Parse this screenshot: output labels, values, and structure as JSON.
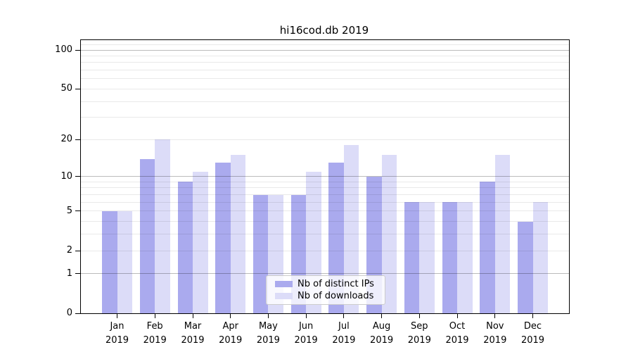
{
  "title": "hi16cod.db 2019",
  "background": "#ffffff",
  "axis_color": "#000000",
  "grid_color_major": "#bbbbbb",
  "grid_color_minor": "#e9e9e9",
  "chart_data": {
    "type": "bar",
    "title": "hi16cod.db 2019",
    "categories": [
      "Jan",
      "Feb",
      "Mar",
      "Apr",
      "May",
      "Jun",
      "Jul",
      "Aug",
      "Sep",
      "Oct",
      "Nov",
      "Dec"
    ],
    "year": "2019",
    "series": [
      {
        "name": "Nb of distinct IPs",
        "color": "#aaaaee",
        "values": [
          5,
          14,
          9,
          13,
          7,
          7,
          13,
          10,
          6,
          6,
          9,
          4
        ]
      },
      {
        "name": "Nb of downloads",
        "color": "#dcdcf8",
        "values": [
          5,
          20,
          11,
          15,
          7,
          11,
          18,
          15,
          6,
          6,
          15,
          6
        ]
      }
    ],
    "xlabel": "",
    "ylabel": "",
    "yscale": "log10(1+v)",
    "ylim": [
      0,
      119
    ],
    "yticks": [
      0,
      1,
      2,
      5,
      10,
      20,
      50,
      100
    ],
    "ytick_labels": [
      "0",
      "1",
      "2",
      "5",
      "10",
      "20",
      "50",
      "100"
    ],
    "major_gridlines": [
      1,
      10,
      100
    ],
    "minor_gridlines": [
      2,
      3,
      4,
      5,
      6,
      7,
      8,
      9,
      20,
      30,
      40,
      50,
      60,
      70,
      80,
      90,
      110
    ],
    "grid": true,
    "legend_position": "lower center"
  }
}
